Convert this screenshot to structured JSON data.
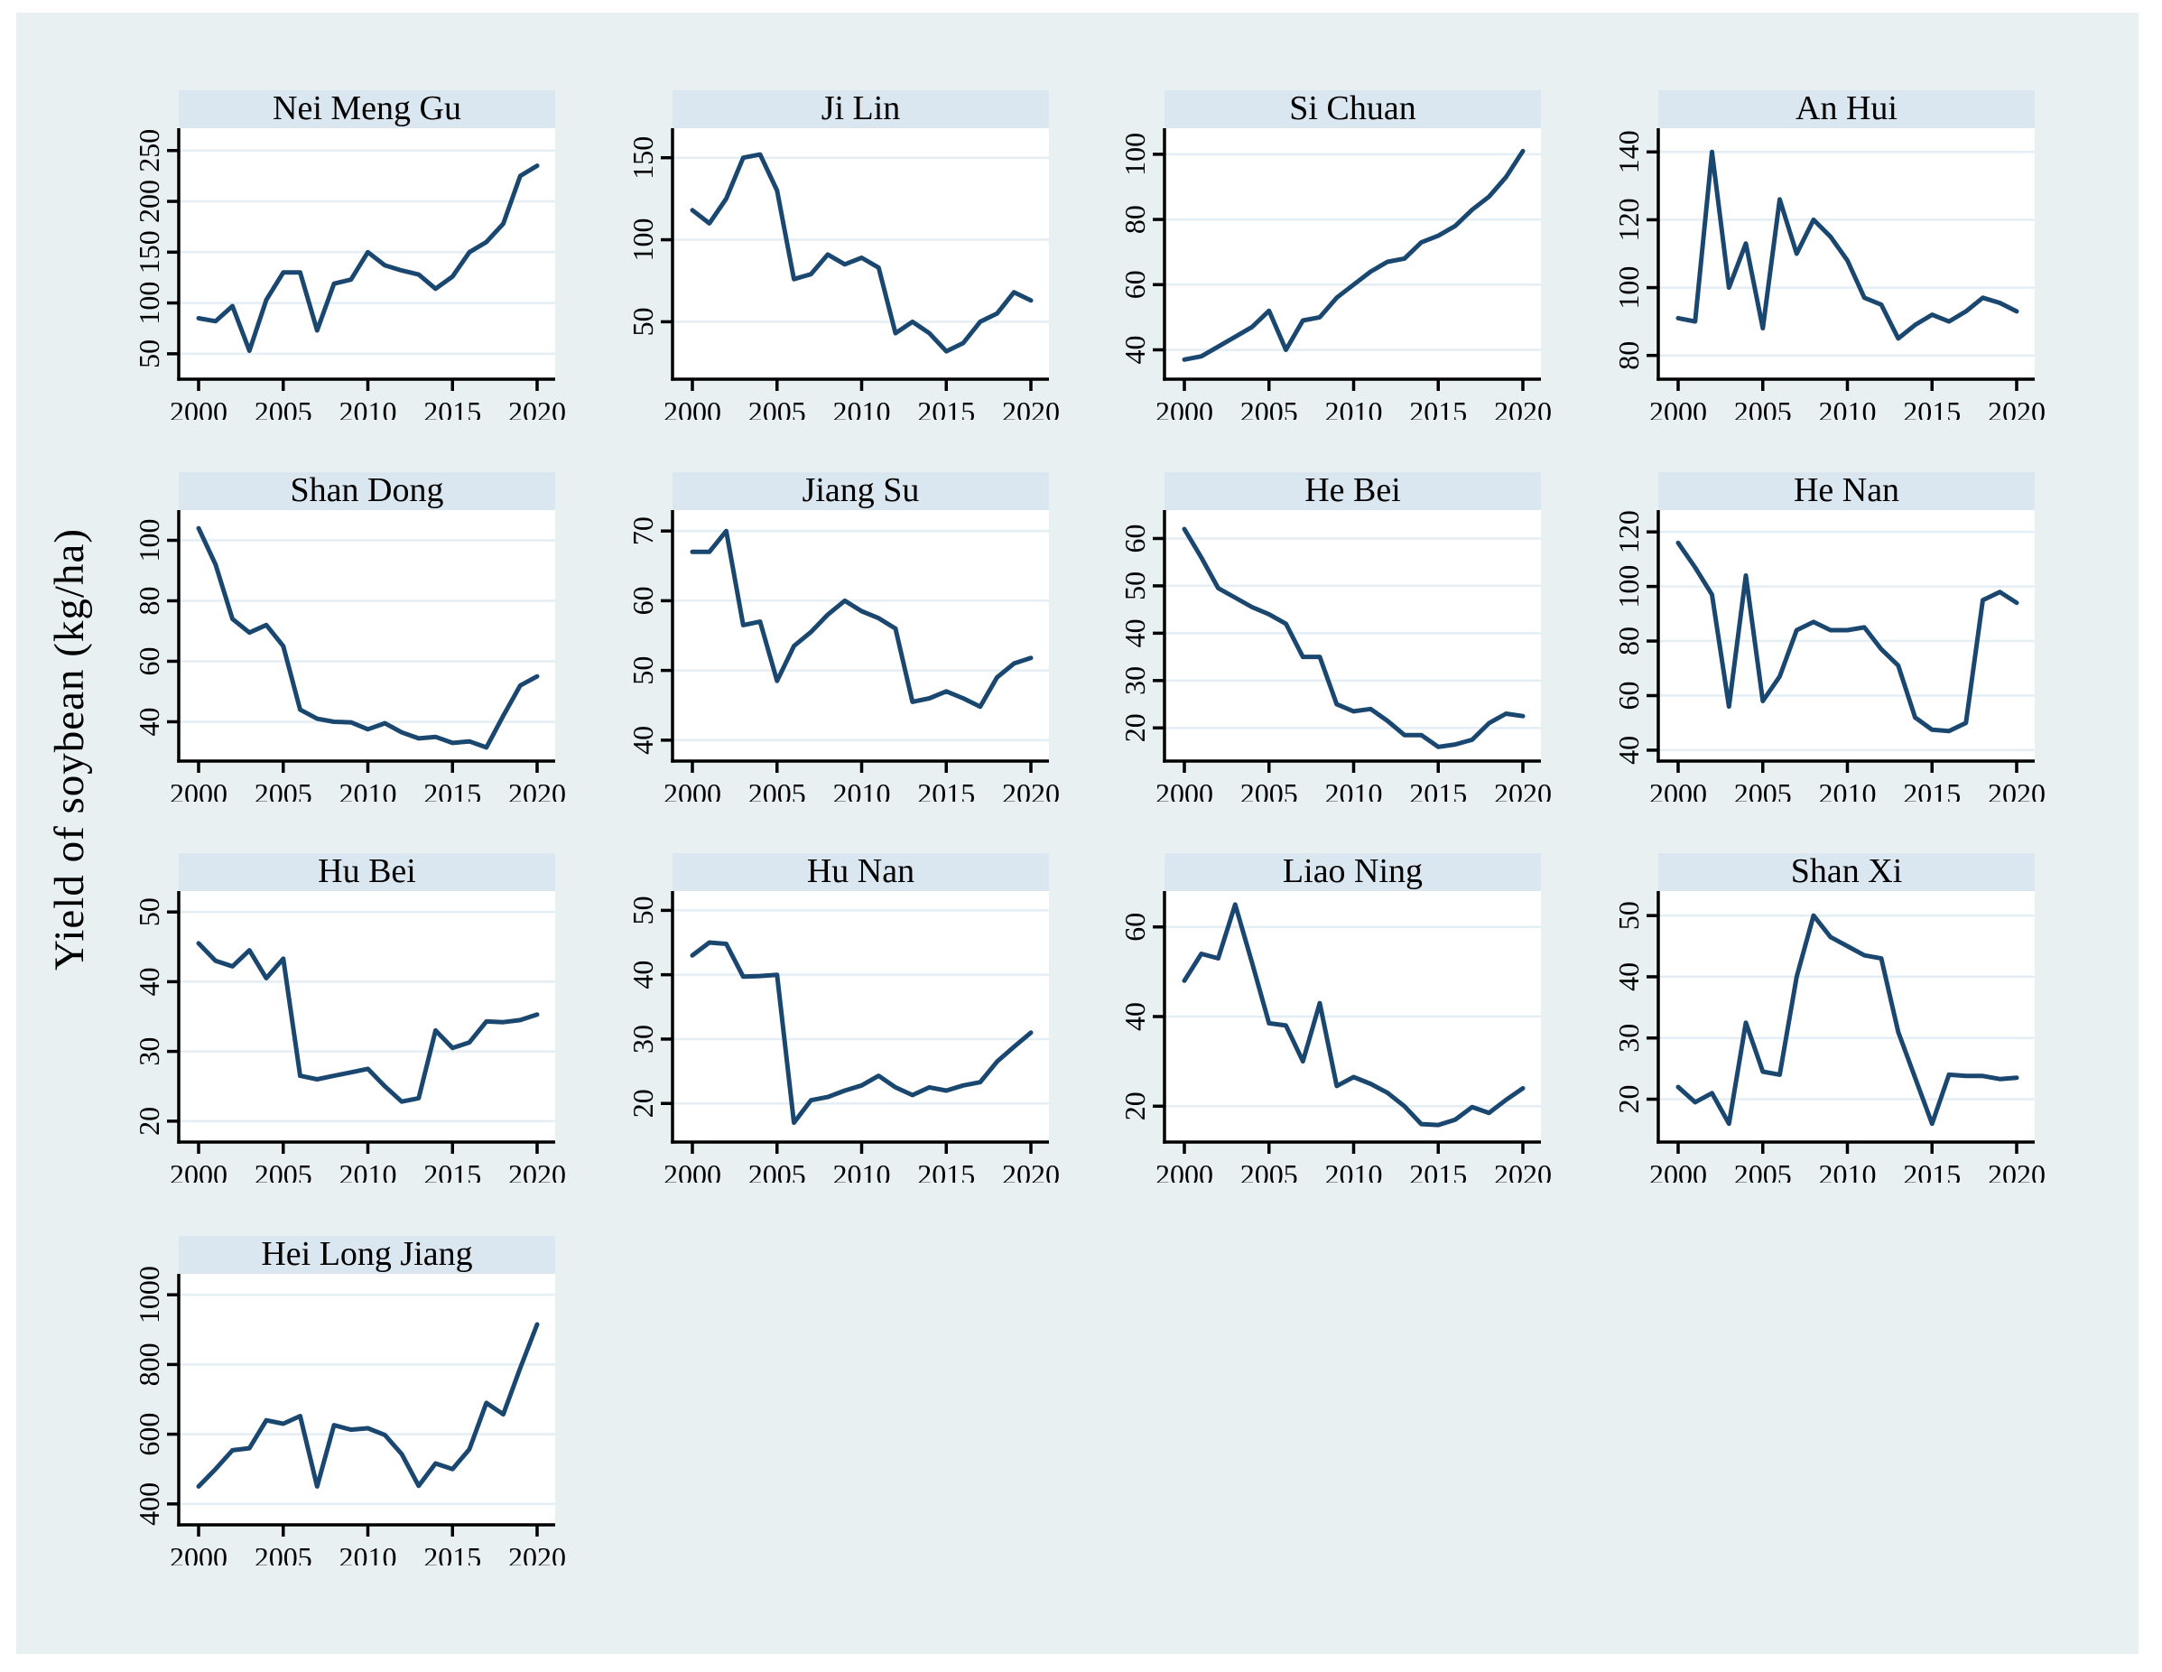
{
  "figure": {
    "ylabel": "Yield of soybean (kg/ha)",
    "x_axis": {
      "ticks": [
        2000,
        2005,
        2010,
        2015,
        2020
      ],
      "range": [
        2000,
        2020
      ]
    },
    "years": [
      2000,
      2001,
      2002,
      2003,
      2004,
      2005,
      2006,
      2007,
      2008,
      2009,
      2010,
      2011,
      2012,
      2013,
      2014,
      2015,
      2016,
      2017,
      2018,
      2019,
      2020
    ],
    "colors": {
      "line": "#1a476f",
      "canvas_bg": "#e9f0f2",
      "panel_bg": "#ffffff",
      "title_band": "#dbe7f0",
      "gridline": "#e4eef5",
      "axis": "#000000",
      "text": "#000000"
    },
    "grid_on": true,
    "legend": "none"
  },
  "chart_data": [
    {
      "type": "line",
      "title": "Nei Meng Gu",
      "row": 0,
      "col": 0,
      "y_ticks": [
        50,
        100,
        150,
        200,
        250
      ],
      "ylim": [
        25,
        272
      ],
      "values": [
        85,
        82,
        97,
        53,
        103,
        130,
        130,
        73,
        119,
        123,
        150,
        137,
        132,
        128,
        114,
        126,
        150,
        160,
        178,
        225,
        235
      ]
    },
    {
      "type": "line",
      "title": "Ji Lin",
      "row": 0,
      "col": 1,
      "y_ticks": [
        50,
        100,
        150
      ],
      "ylim": [
        15,
        168
      ],
      "values": [
        118,
        110,
        125,
        150,
        152,
        130,
        76,
        79,
        91,
        85,
        89,
        83,
        43,
        50,
        43,
        32,
        37,
        50,
        55,
        68,
        63
      ]
    },
    {
      "type": "line",
      "title": "Si Chuan",
      "row": 0,
      "col": 2,
      "y_ticks": [
        40,
        60,
        80,
        100
      ],
      "ylim": [
        31,
        108
      ],
      "values": [
        37,
        38,
        41,
        44,
        47,
        52,
        40,
        49,
        50,
        56,
        60,
        64,
        67,
        68,
        73,
        75,
        78,
        83,
        87,
        93,
        101
      ]
    },
    {
      "type": "line",
      "title": "An Hui",
      "row": 0,
      "col": 3,
      "y_ticks": [
        80,
        100,
        120,
        140
      ],
      "ylim": [
        73,
        147
      ],
      "values": [
        91,
        90,
        140,
        100,
        113,
        88,
        126,
        110,
        120,
        115,
        108,
        97,
        95,
        85,
        89,
        92,
        90,
        93,
        97,
        95.5,
        93
      ]
    },
    {
      "type": "line",
      "title": "Shan Dong",
      "row": 1,
      "col": 0,
      "y_ticks": [
        40,
        60,
        80,
        100
      ],
      "ylim": [
        27,
        110
      ],
      "values": [
        104,
        92,
        74,
        69.5,
        72,
        65,
        44,
        41,
        40,
        39.8,
        37.5,
        39.5,
        36.5,
        34.5,
        35,
        33,
        33.5,
        31.5,
        42,
        52,
        55
      ]
    },
    {
      "type": "line",
      "title": "Jiang Su",
      "row": 1,
      "col": 1,
      "y_ticks": [
        40,
        50,
        60,
        70
      ],
      "ylim": [
        37,
        73
      ],
      "values": [
        67,
        67,
        70,
        56.5,
        57,
        48.5,
        53.5,
        55.5,
        58,
        60,
        58.5,
        57.5,
        56,
        45.5,
        46,
        47,
        46,
        44.8,
        49,
        51,
        51.8
      ]
    },
    {
      "type": "line",
      "title": "He Bei",
      "row": 1,
      "col": 2,
      "y_ticks": [
        20,
        30,
        40,
        50,
        60
      ],
      "ylim": [
        13,
        66
      ],
      "values": [
        62,
        56,
        49.5,
        47.5,
        45.5,
        44,
        42,
        35,
        35,
        25,
        23.5,
        24,
        21.5,
        18.5,
        18.5,
        16,
        16.5,
        17.5,
        21,
        23,
        22.5
      ]
    },
    {
      "type": "line",
      "title": "He Nan",
      "row": 1,
      "col": 3,
      "y_ticks": [
        40,
        60,
        80,
        100,
        120
      ],
      "ylim": [
        36,
        128
      ],
      "values": [
        116,
        107,
        97,
        56,
        104,
        58,
        67,
        84,
        87,
        84,
        84,
        85,
        77,
        71,
        52,
        47.5,
        47,
        50,
        95,
        98,
        94
      ]
    },
    {
      "type": "line",
      "title": "Hu Bei",
      "row": 2,
      "col": 0,
      "y_ticks": [
        20,
        30,
        40,
        50
      ],
      "ylim": [
        17,
        53
      ],
      "values": [
        45.5,
        43,
        42.2,
        44.5,
        40.5,
        43.3,
        26.5,
        26,
        26.5,
        27,
        27.5,
        25,
        22.8,
        23.3,
        33,
        30.5,
        31.3,
        34.3,
        34.2,
        34.5,
        35.3
      ]
    },
    {
      "type": "line",
      "title": "Hu Nan",
      "row": 2,
      "col": 1,
      "y_ticks": [
        20,
        30,
        40,
        50
      ],
      "ylim": [
        14,
        53
      ],
      "values": [
        43,
        45,
        44.8,
        39.7,
        39.8,
        40,
        17,
        20.5,
        21,
        22,
        22.8,
        24.3,
        22.5,
        21.3,
        22.5,
        22,
        22.8,
        23.3,
        26.5,
        28.8,
        31
      ]
    },
    {
      "type": "line",
      "title": "Liao Ning",
      "row": 2,
      "col": 2,
      "y_ticks": [
        20,
        40,
        60
      ],
      "ylim": [
        12,
        68
      ],
      "values": [
        48,
        54,
        53,
        65,
        52,
        38.5,
        38,
        30,
        43,
        24.5,
        26.5,
        25,
        23,
        20,
        16,
        15.8,
        17,
        19.8,
        18.5,
        21.4,
        24
      ]
    },
    {
      "type": "line",
      "title": "Shan Xi",
      "row": 2,
      "col": 3,
      "y_ticks": [
        20,
        30,
        40,
        50
      ],
      "ylim": [
        13,
        54
      ],
      "values": [
        22,
        19.5,
        21,
        16,
        32.5,
        24.5,
        24,
        40,
        50,
        46.5,
        45,
        43.5,
        43,
        31,
        23.5,
        16,
        24,
        23.8,
        23.8,
        23.3,
        23.5
      ]
    },
    {
      "type": "line",
      "title": "Hei Long Jiang",
      "row": 3,
      "col": 0,
      "y_ticks": [
        400,
        600,
        800,
        1000
      ],
      "ylim": [
        340,
        1060
      ],
      "values": [
        450,
        500,
        554,
        560,
        640,
        630,
        652,
        450,
        626,
        613,
        617,
        598,
        543,
        452,
        516,
        500,
        557,
        690,
        657,
        790,
        915
      ]
    }
  ]
}
